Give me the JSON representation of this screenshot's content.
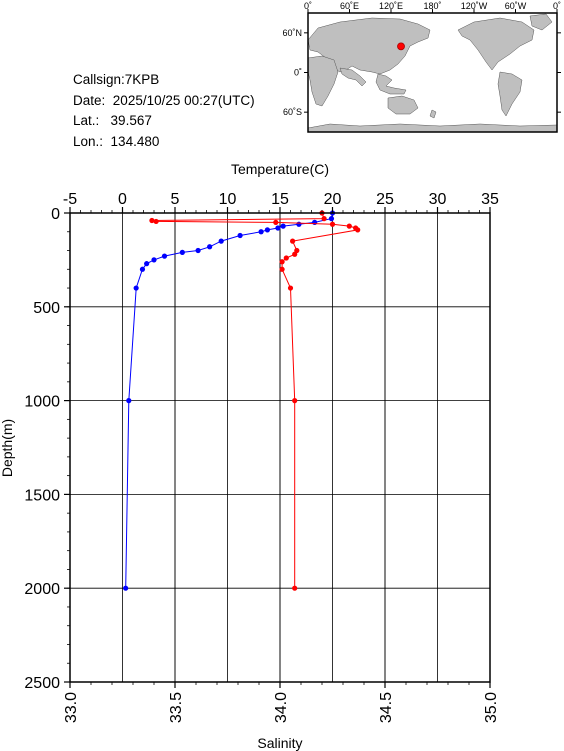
{
  "info": {
    "callsign_label": "Callsign:",
    "callsign": "7KPB",
    "date_label": "Date:",
    "date": "2025/10/25 00:27(UTC)",
    "lat_label": "Lat.:",
    "lat": "39.567",
    "lon_label": "Lon.:",
    "lon": "134.480"
  },
  "map": {
    "lon_ticks": [
      "0˚",
      "60˚E",
      "120˚E",
      "180˚",
      "120˚W",
      "60˚W",
      "0˚"
    ],
    "lat_ticks": [
      "60˚N",
      "0˚",
      "60˚S"
    ],
    "station": {
      "lon": 134.48,
      "lat": 39.567
    },
    "land_color": "#bfbfbf",
    "ocean_color": "#ffffff",
    "marker_color": "#ff0000"
  },
  "chart_data": {
    "type": "line",
    "ylabel": "Depth(m)",
    "ylim": [
      2500,
      0
    ],
    "yticks": [
      "0",
      "500",
      "1000",
      "1500",
      "2000",
      "2500"
    ],
    "x_top": {
      "label": "Temperature(C)",
      "lim": [
        -5,
        35
      ],
      "ticks": [
        "-5",
        "0",
        "5",
        "10",
        "15",
        "20",
        "25",
        "30",
        "35"
      ]
    },
    "x_bottom": {
      "label": "Salinity",
      "lim": [
        33.0,
        35.0
      ],
      "ticks": [
        "33.0",
        "33.5",
        "34.0",
        "34.5",
        "35.0"
      ]
    },
    "grid": true,
    "series": [
      {
        "axis": "temperature",
        "color": "#0000ff",
        "points": [
          [
            20.0,
            0
          ],
          [
            19.9,
            30
          ],
          [
            18.3,
            50
          ],
          [
            16.8,
            60
          ],
          [
            15.3,
            70
          ],
          [
            14.8,
            80
          ],
          [
            13.8,
            90
          ],
          [
            13.2,
            100
          ],
          [
            11.2,
            120
          ],
          [
            9.4,
            150
          ],
          [
            8.3,
            180
          ],
          [
            7.2,
            200
          ],
          [
            5.7,
            210
          ],
          [
            4.0,
            230
          ],
          [
            3.0,
            250
          ],
          [
            2.3,
            270
          ],
          [
            1.9,
            300
          ],
          [
            1.3,
            400
          ],
          [
            0.6,
            1000
          ],
          [
            0.3,
            2000
          ]
        ]
      },
      {
        "axis": "salinity",
        "color": "#ff0000",
        "points": [
          [
            34.2,
            0
          ],
          [
            34.21,
            30
          ],
          [
            33.39,
            40
          ],
          [
            33.41,
            45
          ],
          [
            33.98,
            50
          ],
          [
            34.25,
            60
          ],
          [
            34.33,
            70
          ],
          [
            34.36,
            80
          ],
          [
            34.37,
            90
          ],
          [
            34.06,
            150
          ],
          [
            34.08,
            200
          ],
          [
            34.07,
            220
          ],
          [
            34.03,
            240
          ],
          [
            34.01,
            260
          ],
          [
            34.01,
            300
          ],
          [
            34.05,
            400
          ],
          [
            34.07,
            1000
          ],
          [
            34.07,
            2000
          ]
        ]
      }
    ]
  }
}
